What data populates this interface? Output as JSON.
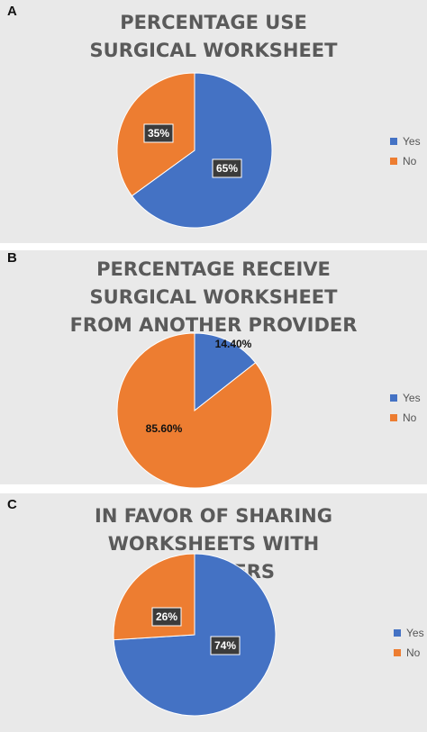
{
  "colors": {
    "yes": "#4472c4",
    "no": "#ed7d31",
    "panel_bg": "#e9e9e9",
    "title": "#5a5a5a"
  },
  "panels": [
    {
      "letter": "A",
      "title": "PERCENTAGE USE SURGICAL WORKSHEET"
    },
    {
      "letter": "B",
      "title": "PERCENTAGE RECEIVE SURGICAL WORKSHEET FROM ANOTHER PROVIDER"
    },
    {
      "letter": "C",
      "title": "IN FAVOR OF SHARING WORKSHEETS WITH PROVIDERS"
    }
  ],
  "chart_data": [
    {
      "type": "pie",
      "title": "PERCENTAGE USE SURGICAL WORKSHEET",
      "categories": [
        "Yes",
        "No"
      ],
      "values": [
        65,
        35
      ],
      "labels": [
        "65%",
        "35%"
      ],
      "legend": "right"
    },
    {
      "type": "pie",
      "title": "PERCENTAGE RECEIVE SURGICAL WORKSHEET FROM ANOTHER PROVIDER",
      "categories": [
        "Yes",
        "No"
      ],
      "values": [
        14.4,
        85.6
      ],
      "labels": [
        "14.40%",
        "85.60%"
      ],
      "legend": "right"
    },
    {
      "type": "pie",
      "title": "IN FAVOR OF SHARING WORKSHEETS WITH PROVIDERS",
      "categories": [
        "Yes",
        "No"
      ],
      "values": [
        74,
        26
      ],
      "labels": [
        "74%",
        "26%"
      ],
      "legend": "right"
    }
  ]
}
